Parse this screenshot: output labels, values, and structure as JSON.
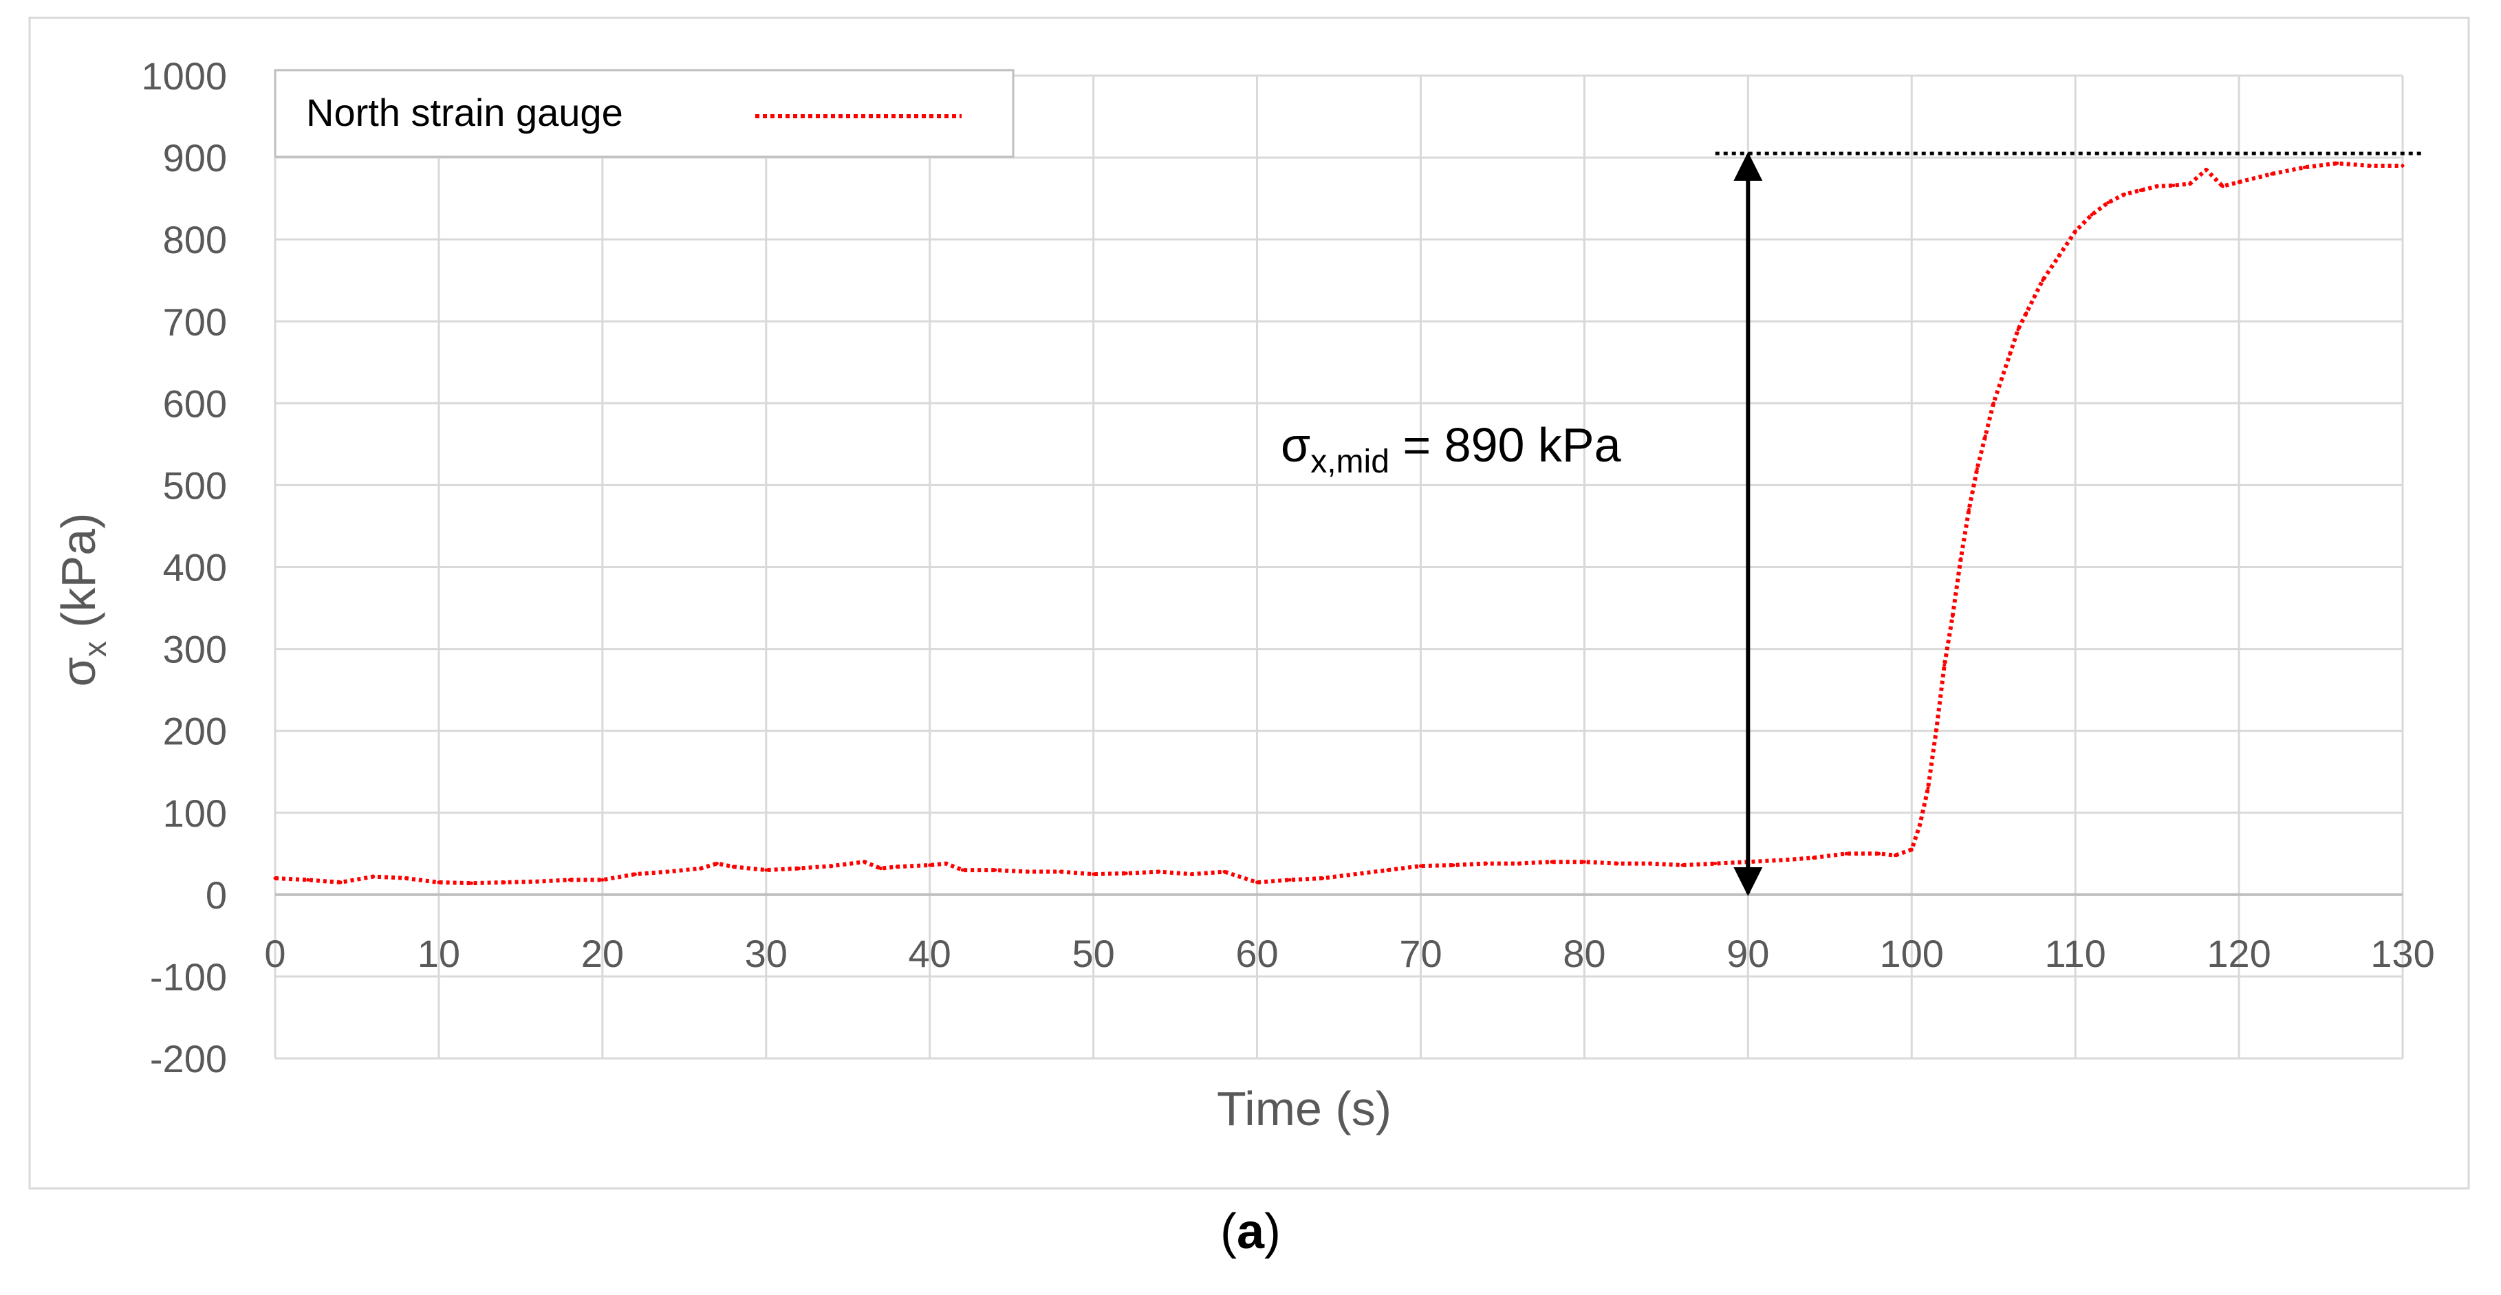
{
  "chart_data": {
    "type": "line",
    "xlabel": "Time (s)",
    "ylabel_main": "σ",
    "ylabel_sub": "x",
    "ylabel_unit": " (kPa)",
    "xlim": [
      0,
      130
    ],
    "ylim": [
      -200,
      1000
    ],
    "x_ticks": [
      0,
      10,
      20,
      30,
      40,
      50,
      60,
      70,
      80,
      90,
      100,
      110,
      120,
      130
    ],
    "y_ticks": [
      -200,
      -100,
      0,
      100,
      200,
      300,
      400,
      500,
      600,
      700,
      800,
      900,
      1000
    ],
    "grid": true,
    "legend": {
      "position": "top-left",
      "entries": [
        "North strain gauge"
      ]
    },
    "series": [
      {
        "name": "North strain gauge",
        "color": "#ff0000",
        "style": "dotted",
        "x": [
          0,
          2,
          4,
          6,
          8,
          10,
          12,
          14,
          16,
          18,
          20,
          22,
          24,
          26,
          27,
          28,
          30,
          32,
          34,
          36,
          37,
          38,
          40,
          41,
          42,
          44,
          46,
          48,
          50,
          52,
          54,
          56,
          58,
          60,
          62,
          64,
          66,
          68,
          70,
          72,
          74,
          76,
          78,
          80,
          82,
          84,
          86,
          88,
          90,
          92,
          94,
          96,
          98,
          99,
          100,
          100.5,
          101,
          101.5,
          102,
          102.5,
          103,
          103.5,
          104,
          104.5,
          105,
          105.5,
          106,
          106.5,
          107,
          107.5,
          108,
          109,
          110,
          111,
          112,
          113,
          114,
          115,
          116,
          117,
          118,
          119,
          120,
          122,
          124,
          126,
          128,
          130
        ],
        "y": [
          20,
          18,
          15,
          22,
          20,
          15,
          14,
          15,
          16,
          18,
          18,
          25,
          28,
          32,
          38,
          34,
          30,
          32,
          35,
          40,
          32,
          34,
          36,
          38,
          30,
          30,
          28,
          28,
          25,
          26,
          28,
          25,
          28,
          15,
          18,
          20,
          25,
          30,
          35,
          36,
          38,
          38,
          40,
          40,
          38,
          38,
          36,
          38,
          40,
          42,
          45,
          50,
          50,
          48,
          55,
          85,
          130,
          200,
          280,
          340,
          410,
          470,
          520,
          560,
          600,
          630,
          660,
          690,
          710,
          730,
          750,
          780,
          810,
          830,
          845,
          855,
          860,
          865,
          866,
          868,
          885,
          865,
          870,
          880,
          888,
          893,
          890,
          890
        ]
      }
    ],
    "annotations": {
      "reference_line_y": 905,
      "reference_line_x_start": 88,
      "reference_line_x_end": 130,
      "arrow_x": 90,
      "arrow_y_from": 0,
      "arrow_y_to": 905,
      "label_main": "σ",
      "label_sub": "x,mid",
      "label_rest": " = 890 kPa"
    }
  },
  "caption": {
    "open": "(",
    "letter": "a",
    "close": ")"
  }
}
